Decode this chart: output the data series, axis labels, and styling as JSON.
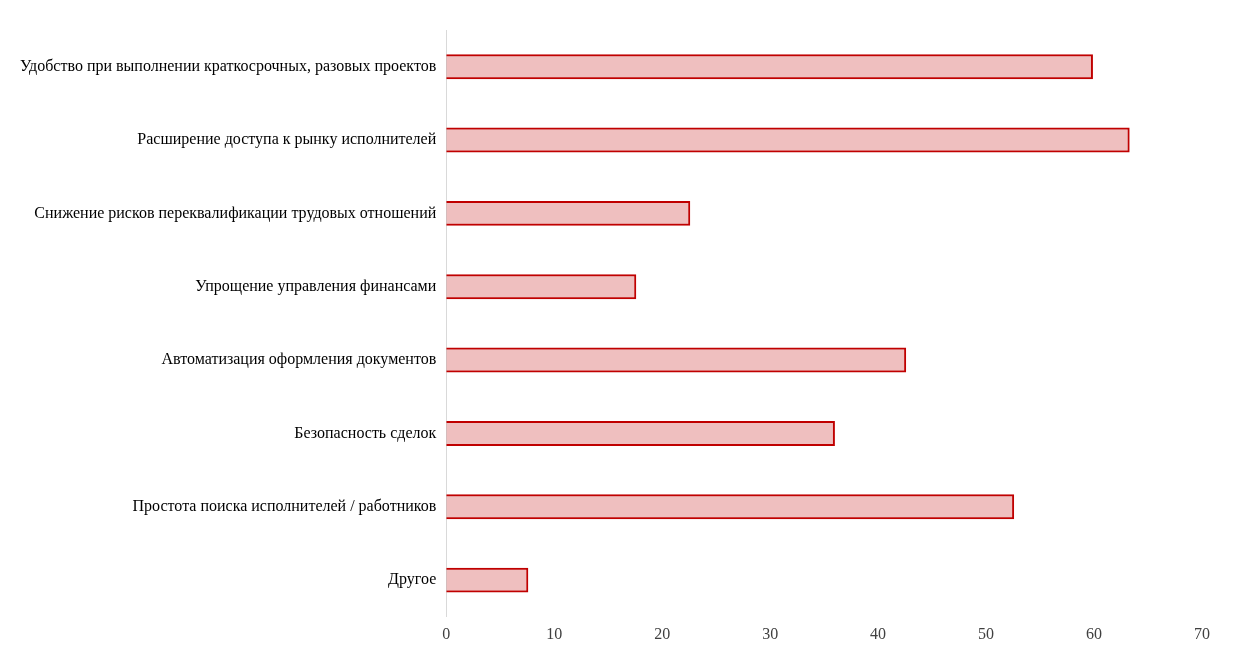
{
  "chart_data": {
    "type": "bar",
    "orientation": "horizontal",
    "categories": [
      "Удобство при выполнении краткосрочных, разовых проектов",
      "Расширение доступа к рынку исполнителей",
      "Снижение рисков переквалификации трудовых отношений",
      "Упрощение управления финансами",
      "Автоматизация оформления документов",
      "Безопасность сделок",
      "Простота поиска исполнителей / работников",
      "Другое"
    ],
    "series": [
      {
        "color": "#c00000",
        "values": [
          59.9,
          63.3,
          22.6,
          17.6,
          42.6,
          36,
          52.6,
          7.6
        ]
      }
    ],
    "xlim": [
      0,
      70
    ],
    "xticks": [
      0,
      10,
      20,
      30,
      40,
      50,
      60,
      70
    ],
    "grid": false,
    "legend": false
  }
}
